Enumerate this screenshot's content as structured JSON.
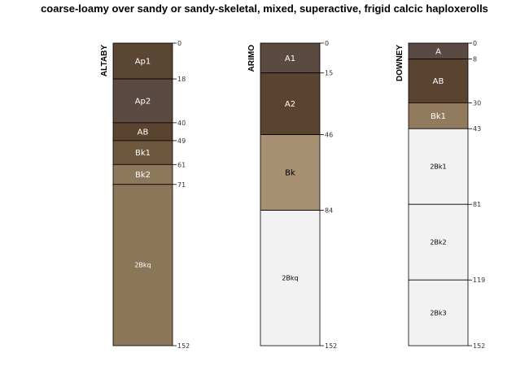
{
  "title": "coarse-loamy over sandy or sandy-skeletal, mixed, superactive, frigid calcic haploxerolls",
  "max_depth": 152,
  "profiles": [
    {
      "name": "ALTABY",
      "horizons": [
        {
          "name": "Ap1",
          "top": 0,
          "bottom": 18,
          "color": "#5a4632",
          "text_color": "#ffffff"
        },
        {
          "name": "Ap2",
          "top": 18,
          "bottom": 40,
          "color": "#5b4a42",
          "text_color": "#ffffff"
        },
        {
          "name": "AB",
          "top": 40,
          "bottom": 49,
          "color": "#5a4430",
          "text_color": "#ffffff"
        },
        {
          "name": "Bk1",
          "top": 49,
          "bottom": 61,
          "color": "#6d573f",
          "text_color": "#ffffff"
        },
        {
          "name": "Bk2",
          "top": 61,
          "bottom": 71,
          "color": "#8e785c",
          "text_color": "#ffffff"
        },
        {
          "name": "2Bkq",
          "top": 71,
          "bottom": 152,
          "color": "#8c7658",
          "text_color": "#ffffff"
        }
      ],
      "depth_labels": [
        "0",
        "18",
        "40",
        "49",
        "61",
        "71",
        "152"
      ]
    },
    {
      "name": "ARIMO",
      "horizons": [
        {
          "name": "A1",
          "top": 0,
          "bottom": 15,
          "color": "#5b4a3f",
          "text_color": "#ffffff"
        },
        {
          "name": "A2",
          "top": 15,
          "bottom": 46,
          "color": "#5a4430",
          "text_color": "#ffffff"
        },
        {
          "name": "Bk",
          "top": 46,
          "bottom": 84,
          "color": "#a89173",
          "text_color": "#000000"
        },
        {
          "name": "2Bkq",
          "top": 84,
          "bottom": 152,
          "color": "#f2f2f2",
          "text_color": "#000000"
        }
      ],
      "depth_labels": [
        "0",
        "15",
        "46",
        "84",
        "152"
      ]
    },
    {
      "name": "DOWNEY",
      "horizons": [
        {
          "name": "A",
          "top": 0,
          "bottom": 8,
          "color": "#5b4a42",
          "text_color": "#ffffff"
        },
        {
          "name": "AB",
          "top": 8,
          "bottom": 30,
          "color": "#5a4430",
          "text_color": "#ffffff"
        },
        {
          "name": "Bk1",
          "top": 30,
          "bottom": 43,
          "color": "#927a5e",
          "text_color": "#ffffff"
        },
        {
          "name": "2Bk1",
          "top": 43,
          "bottom": 81,
          "color": "#f2f2f2",
          "text_color": "#000000"
        },
        {
          "name": "2Bk2",
          "top": 81,
          "bottom": 119,
          "color": "#f2f2f2",
          "text_color": "#000000"
        },
        {
          "name": "2Bk3",
          "top": 119,
          "bottom": 152,
          "color": "#f2f2f2",
          "text_color": "#000000"
        }
      ],
      "depth_labels": [
        "0",
        "8",
        "30",
        "43",
        "81",
        "119",
        "152"
      ]
    }
  ]
}
